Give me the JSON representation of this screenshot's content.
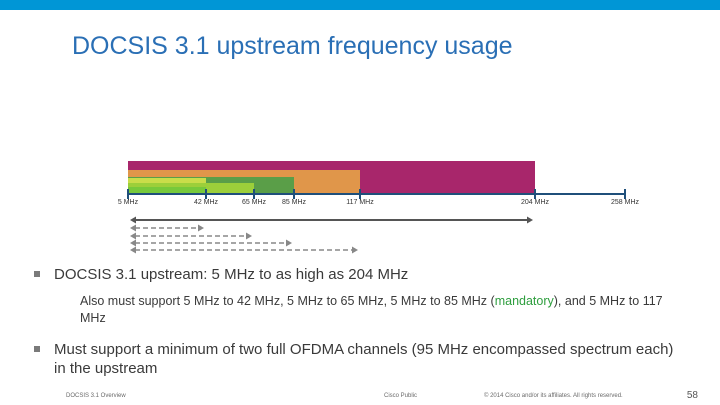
{
  "title": "DOCSIS 3.1 upstream frequency usage",
  "freq_axis": {
    "ticks": [
      {
        "mhz": 5,
        "label": "5 MHz"
      },
      {
        "mhz": 42,
        "label": "42 MHz"
      },
      {
        "mhz": 65,
        "label": "65 MHz"
      },
      {
        "mhz": 85,
        "label": "85 MHz"
      },
      {
        "mhz": 117,
        "label": "117 MHz"
      },
      {
        "mhz": 204,
        "label": "204 MHz"
      },
      {
        "mhz": 258,
        "label": "258 MHz"
      }
    ],
    "bands": [
      {
        "from": 5,
        "to": 204,
        "color": "#a8266b"
      },
      {
        "from": 5,
        "to": 117,
        "color": "#e0964a"
      },
      {
        "from": 5,
        "to": 65,
        "color": "#e8a45a"
      },
      {
        "from": 5,
        "to": 85,
        "color": "#5a9e48"
      },
      {
        "from": 5,
        "to": 42,
        "color": "#c9dd4a"
      },
      {
        "from": 5,
        "to": 65,
        "color": "#9ccf3a"
      },
      {
        "from": 5,
        "to": 42,
        "color": "#77c93b"
      }
    ],
    "arrows": [
      {
        "to": 204,
        "style": "solid"
      },
      {
        "to": 42,
        "style": "dashed"
      },
      {
        "to": 65,
        "style": "dashed"
      },
      {
        "to": 85,
        "style": "dashed"
      },
      {
        "to": 117,
        "style": "dashed"
      }
    ],
    "colors": {
      "axis": "#1f4f7a",
      "arrow_solid": "#555555",
      "arrow_dashed": "#888888"
    }
  },
  "bullets": {
    "b1": "DOCSIS 3.1 upstream: 5 MHz to as high as 204 MHz",
    "b1_sub_pre": "Also must support 5 MHz to 42 MHz, 5 MHz to 65 MHz, 5 MHz to 85 MHz (",
    "b1_sub_highlight": "mandatory",
    "b1_sub_post": "), and 5 MHz to 117 MHz",
    "b2": "Must support a minimum of two full OFDMA channels (95 MHz encompassed spectrum each) in the upstream"
  },
  "footer": {
    "left": "DOCSIS 3.1 Overview",
    "center": "Cisco Public",
    "right": "© 2014 Cisco and/or its affiliates. All rights reserved.",
    "page": "58"
  }
}
